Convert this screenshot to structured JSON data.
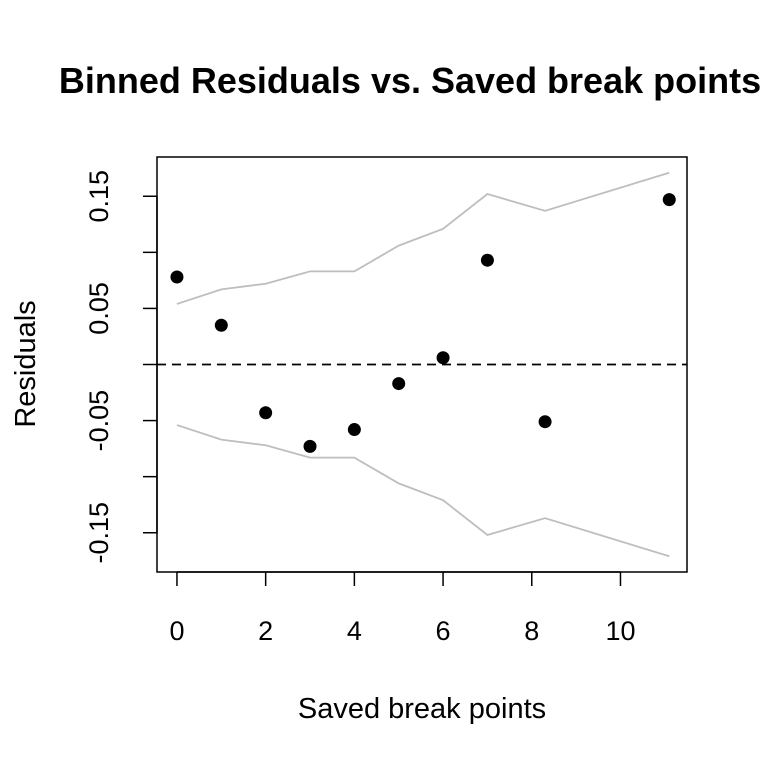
{
  "chart_data": {
    "type": "scatter",
    "title": "Binned Residuals vs. Saved break points",
    "xlabel": "Saved break points",
    "ylabel": "Residuals",
    "xlim": [
      -0.45,
      11.5
    ],
    "ylim": [
      -0.185,
      0.185
    ],
    "x_ticks": [
      0,
      2,
      4,
      6,
      8,
      10
    ],
    "x_tick_labels": [
      "0",
      "2",
      "4",
      "6",
      "8",
      "10"
    ],
    "y_ticks": [
      -0.15,
      -0.1,
      -0.05,
      0,
      0.05,
      0.1,
      0.15
    ],
    "y_tick_labels": [
      "-0.15",
      "",
      "-0.05",
      "",
      "0.05",
      "",
      "0.15"
    ],
    "reference_line": {
      "y": 0,
      "style": "dashed",
      "color": "#000000"
    },
    "series": [
      {
        "type": "points",
        "color": "#000000",
        "x": [
          0,
          1,
          2,
          3,
          4,
          5,
          6,
          7,
          8.3,
          11.1
        ],
        "y": [
          0.078,
          0.035,
          -0.043,
          -0.073,
          -0.058,
          -0.017,
          0.006,
          0.093,
          -0.051,
          0.147
        ]
      },
      {
        "type": "line",
        "color": "#bebebe",
        "x": [
          0,
          1,
          2,
          3,
          4,
          5,
          6,
          7,
          8.3,
          11.1
        ],
        "y": [
          0.054,
          0.067,
          0.072,
          0.083,
          0.083,
          0.106,
          0.121,
          0.152,
          0.137,
          0.171
        ]
      },
      {
        "type": "line",
        "color": "#bebebe",
        "x": [
          0,
          1,
          2,
          3,
          4,
          5,
          6,
          7,
          8.3,
          11.1
        ],
        "y": [
          -0.054,
          -0.067,
          -0.072,
          -0.083,
          -0.083,
          -0.106,
          -0.121,
          -0.152,
          -0.137,
          -0.171
        ]
      }
    ],
    "grid": false,
    "legend": "none"
  }
}
